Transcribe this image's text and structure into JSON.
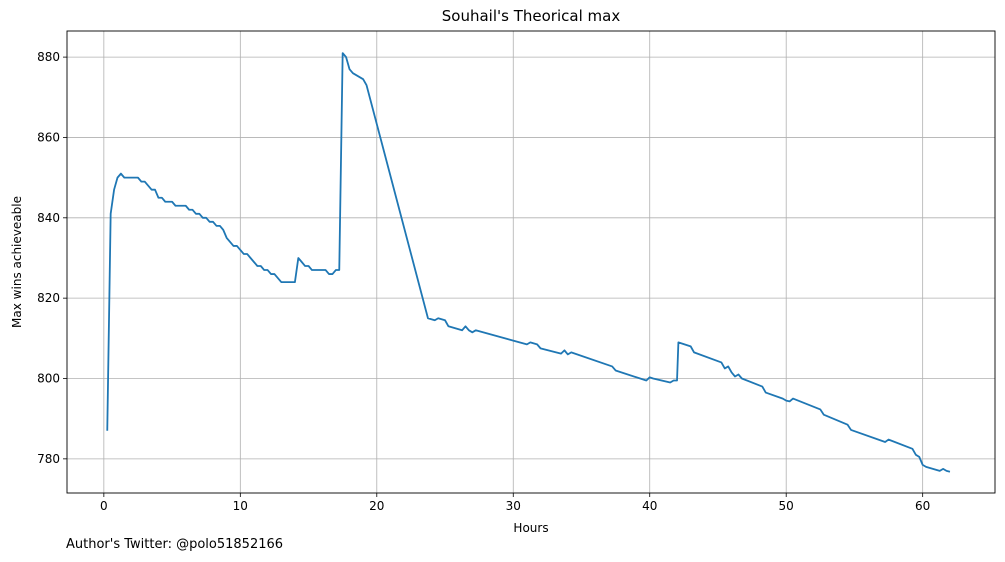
{
  "chart_data": {
    "type": "line",
    "title": "Souhail's Theorical max",
    "xlabel": "Hours",
    "ylabel": "Max wins achieveable",
    "xlim": [
      -2.7,
      65.3
    ],
    "ylim": [
      771.5,
      886.5
    ],
    "xticks": [
      0,
      10,
      20,
      30,
      40,
      50,
      60
    ],
    "yticks": [
      780,
      800,
      820,
      840,
      860,
      880
    ],
    "grid": true,
    "series": [
      {
        "color": "#1f77b4",
        "x": [
          0.25,
          0.5,
          0.75,
          1.0,
          1.25,
          1.5,
          2.0,
          2.5,
          2.75,
          3.0,
          3.25,
          3.5,
          3.75,
          4.0,
          4.25,
          4.5,
          5.0,
          5.25,
          6.0,
          6.25,
          6.5,
          6.75,
          7.0,
          7.25,
          7.5,
          7.75,
          8.0,
          8.25,
          8.5,
          8.75,
          9.0,
          9.25,
          9.5,
          9.75,
          10.0,
          10.25,
          10.5,
          10.75,
          11.0,
          11.25,
          11.5,
          11.75,
          12.0,
          12.25,
          12.5,
          12.75,
          13.0,
          13.25,
          13.5,
          14.0,
          14.25,
          14.5,
          14.75,
          15.0,
          15.25,
          15.5,
          16.0,
          16.25,
          16.5,
          16.75,
          17.0,
          17.25,
          17.5,
          17.75,
          18.0,
          18.25,
          18.5,
          18.75,
          19.0,
          19.25,
          23.75,
          24.25,
          24.5,
          25.0,
          25.25,
          26.25,
          26.5,
          26.75,
          27.0,
          27.25,
          31.0,
          31.25,
          31.75,
          32.0,
          33.5,
          33.75,
          34.0,
          34.25,
          37.25,
          37.5,
          39.75,
          40.0,
          40.25,
          41.5,
          41.75,
          42.0,
          42.1,
          43.0,
          43.25,
          45.25,
          45.5,
          45.75,
          46.0,
          46.25,
          46.5,
          46.75,
          48.25,
          48.5,
          49.75,
          50.0,
          50.25,
          50.5,
          52.5,
          52.75,
          54.5,
          54.75,
          57.25,
          57.5,
          59.25,
          59.5,
          59.75,
          60.0,
          60.25,
          61.25,
          61.5,
          61.75,
          62.0
        ],
        "y": [
          787,
          841,
          847,
          850,
          851,
          850,
          850,
          850,
          849,
          849,
          848,
          847,
          847,
          845,
          845,
          844,
          844,
          843,
          843,
          842,
          842,
          841,
          841,
          840,
          840,
          839,
          839,
          838,
          838,
          837,
          835,
          834,
          833,
          833,
          832,
          831,
          831,
          830,
          829,
          828,
          828,
          827,
          827,
          826,
          826,
          825,
          824,
          824,
          824,
          824,
          830,
          829,
          828,
          828,
          827,
          827,
          827,
          827,
          826,
          826,
          827,
          827,
          881,
          880,
          877,
          876,
          875.5,
          875,
          874.5,
          873,
          815,
          814.5,
          815,
          814.5,
          813,
          812,
          813,
          812,
          811.5,
          812,
          808.5,
          809,
          808.5,
          807.5,
          806.2,
          807,
          806,
          806.5,
          803,
          802,
          799.5,
          800.3,
          800,
          799,
          799.5,
          799.5,
          809,
          808,
          806.5,
          804,
          802.5,
          803,
          801.5,
          800.5,
          801,
          800,
          798,
          796.5,
          795,
          794.5,
          794.3,
          795,
          792.3,
          791,
          788.5,
          787.2,
          784.2,
          784.8,
          782.5,
          781,
          780.5,
          778.5,
          778,
          777,
          777.5,
          777,
          776.8
        ]
      }
    ]
  },
  "footer": {
    "text": "Author's Twitter: @polo51852166"
  }
}
